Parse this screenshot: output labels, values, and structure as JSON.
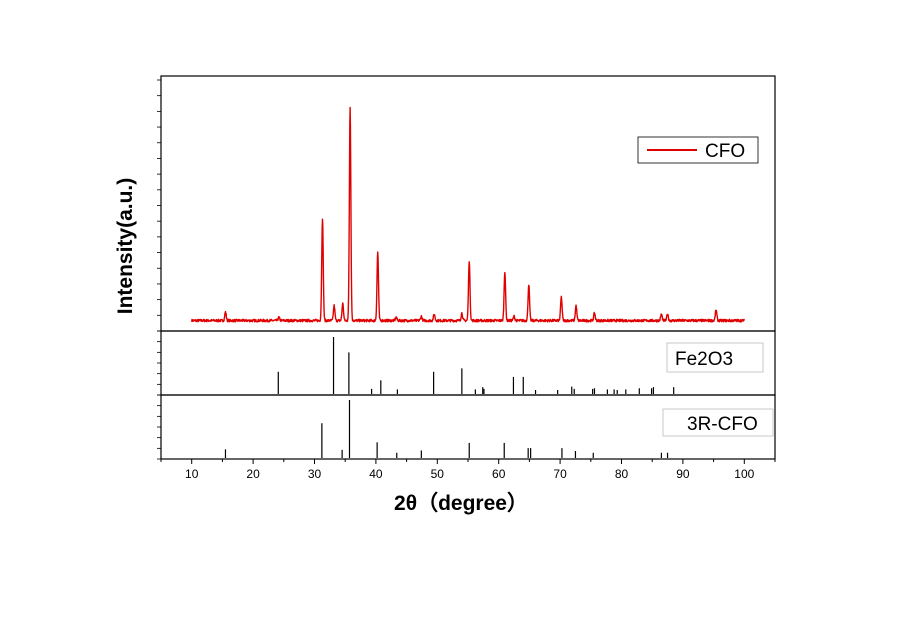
{
  "chart_data": {
    "type": "line",
    "title": "",
    "xlabel": "2θ（degree）",
    "ylabel": "Intensity(a.u.)",
    "xlim": [
      5,
      105
    ],
    "x_ticks": [
      10,
      20,
      30,
      40,
      50,
      60,
      70,
      80,
      90,
      100
    ],
    "grid": false,
    "colors": {
      "pattern": "#e00000",
      "sticks": "#000000",
      "frame": "#000000"
    },
    "panels": [
      {
        "name": "CFO",
        "kind": "pattern",
        "legend_label": "CFO",
        "legend_position": "top-right",
        "ylim": [
          0,
          1.05
        ],
        "baseline": 0.03,
        "peaks": [
          {
            "x": 15.5,
            "y": 0.04
          },
          {
            "x": 24.2,
            "y": 0.015
          },
          {
            "x": 31.3,
            "y": 0.48
          },
          {
            "x": 33.2,
            "y": 0.07
          },
          {
            "x": 34.6,
            "y": 0.08
          },
          {
            "x": 35.8,
            "y": 1.0
          },
          {
            "x": 40.3,
            "y": 0.32
          },
          {
            "x": 43.3,
            "y": 0.015
          },
          {
            "x": 47.4,
            "y": 0.02
          },
          {
            "x": 49.5,
            "y": 0.03
          },
          {
            "x": 54.0,
            "y": 0.035
          },
          {
            "x": 55.2,
            "y": 0.28
          },
          {
            "x": 61.0,
            "y": 0.23
          },
          {
            "x": 62.5,
            "y": 0.02
          },
          {
            "x": 64.9,
            "y": 0.17
          },
          {
            "x": 70.2,
            "y": 0.11
          },
          {
            "x": 72.6,
            "y": 0.07
          },
          {
            "x": 75.6,
            "y": 0.035
          },
          {
            "x": 86.5,
            "y": 0.03
          },
          {
            "x": 87.5,
            "y": 0.03
          },
          {
            "x": 95.4,
            "y": 0.05
          }
        ]
      },
      {
        "name": "Fe2O3",
        "kind": "sticks",
        "legend_label": "Fe2O3",
        "legend_position": "top-right",
        "ylim": [
          0,
          1.0
        ],
        "sticks": [
          {
            "x": 24.1,
            "y": 0.39
          },
          {
            "x": 33.1,
            "y": 1.0
          },
          {
            "x": 35.6,
            "y": 0.73
          },
          {
            "x": 39.3,
            "y": 0.09
          },
          {
            "x": 40.8,
            "y": 0.24
          },
          {
            "x": 43.5,
            "y": 0.08
          },
          {
            "x": 49.4,
            "y": 0.39
          },
          {
            "x": 54.0,
            "y": 0.45
          },
          {
            "x": 56.2,
            "y": 0.08
          },
          {
            "x": 57.4,
            "y": 0.12
          },
          {
            "x": 57.6,
            "y": 0.09
          },
          {
            "x": 62.4,
            "y": 0.3
          },
          {
            "x": 64.0,
            "y": 0.3
          },
          {
            "x": 66.0,
            "y": 0.07
          },
          {
            "x": 69.6,
            "y": 0.07
          },
          {
            "x": 71.9,
            "y": 0.13
          },
          {
            "x": 72.3,
            "y": 0.09
          },
          {
            "x": 75.3,
            "y": 0.09
          },
          {
            "x": 75.6,
            "y": 0.1
          },
          {
            "x": 77.7,
            "y": 0.08
          },
          {
            "x": 78.8,
            "y": 0.08
          },
          {
            "x": 79.3,
            "y": 0.07
          },
          {
            "x": 80.7,
            "y": 0.08
          },
          {
            "x": 82.9,
            "y": 0.1
          },
          {
            "x": 84.9,
            "y": 0.1
          },
          {
            "x": 85.2,
            "y": 0.12
          },
          {
            "x": 88.5,
            "y": 0.12
          }
        ]
      },
      {
        "name": "3R-CFO",
        "kind": "sticks",
        "legend_label": "3R-CFO",
        "legend_position": "top-right",
        "ylim": [
          0,
          1.0
        ],
        "sticks": [
          {
            "x": 15.5,
            "y": 0.15
          },
          {
            "x": 31.2,
            "y": 0.6
          },
          {
            "x": 34.5,
            "y": 0.14
          },
          {
            "x": 35.7,
            "y": 1.0
          },
          {
            "x": 40.2,
            "y": 0.27
          },
          {
            "x": 43.4,
            "y": 0.09
          },
          {
            "x": 47.4,
            "y": 0.13
          },
          {
            "x": 55.2,
            "y": 0.26
          },
          {
            "x": 60.9,
            "y": 0.26
          },
          {
            "x": 64.8,
            "y": 0.17
          },
          {
            "x": 65.2,
            "y": 0.17
          },
          {
            "x": 70.3,
            "y": 0.17
          },
          {
            "x": 72.5,
            "y": 0.12
          },
          {
            "x": 75.4,
            "y": 0.09
          },
          {
            "x": 86.5,
            "y": 0.09
          },
          {
            "x": 87.5,
            "y": 0.09
          }
        ]
      }
    ]
  }
}
